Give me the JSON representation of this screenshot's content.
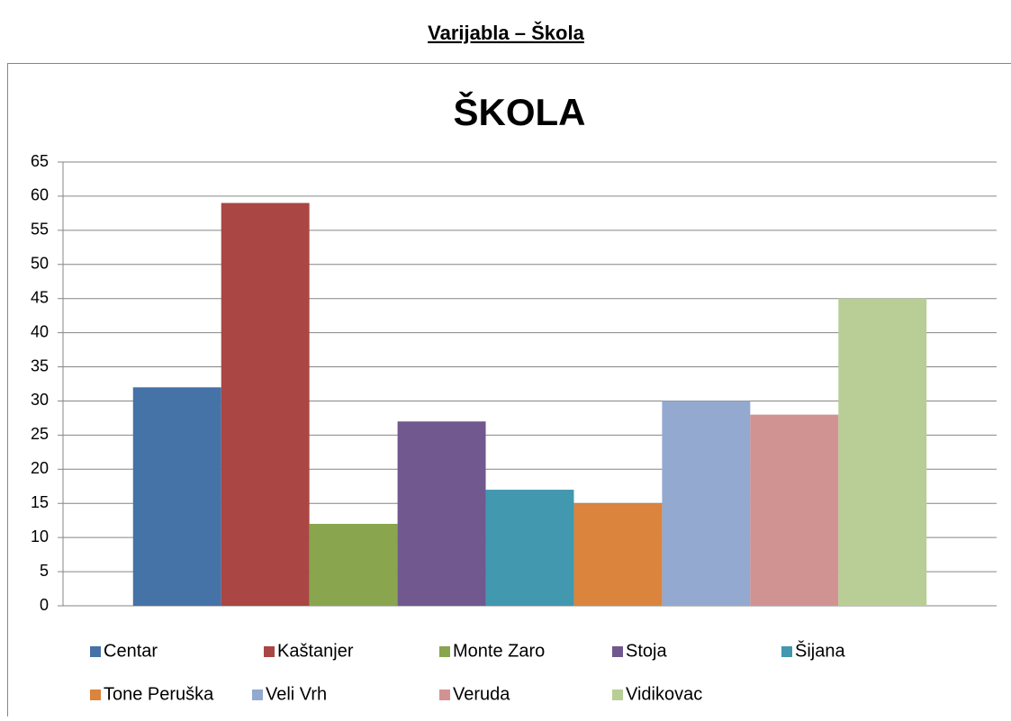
{
  "heading": "Varijabla – Škola",
  "chart_data": {
    "type": "bar",
    "title": "ŠKOLA",
    "categories": [
      null
    ],
    "series": [
      {
        "name": "Centar",
        "color": "#4572a7",
        "values": [
          32
        ]
      },
      {
        "name": "Kaštanjer",
        "color": "#aa4643",
        "values": [
          59
        ]
      },
      {
        "name": "Monte Zaro",
        "color": "#89a54e",
        "values": [
          12
        ]
      },
      {
        "name": "Stoja",
        "color": "#71588f",
        "values": [
          27
        ]
      },
      {
        "name": "Šijana",
        "color": "#4198af",
        "values": [
          17
        ]
      },
      {
        "name": "Tone Peruška",
        "color": "#db843d",
        "values": [
          15
        ]
      },
      {
        "name": "Veli Vrh",
        "color": "#93a9cf",
        "values": [
          30
        ]
      },
      {
        "name": "Veruda",
        "color": "#d19392",
        "values": [
          28
        ]
      },
      {
        "name": "Vidikovac",
        "color": "#b9cd96",
        "values": [
          45
        ]
      }
    ],
    "ylim": [
      0,
      65
    ],
    "yticks": [
      0,
      5,
      10,
      15,
      20,
      25,
      30,
      35,
      40,
      45,
      50,
      55,
      60,
      65
    ],
    "grid": true,
    "legend": "bottom"
  }
}
